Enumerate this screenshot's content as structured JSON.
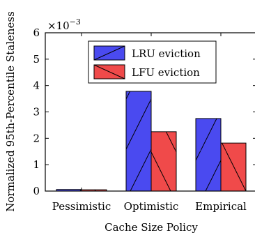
{
  "chart_data": {
    "type": "bar",
    "title": "",
    "xlabel": "Cache Size Policy",
    "ylabel": "Normalized 95th-Percentile Staleness",
    "scale_label_base": "×10",
    "scale_label_exp": "−3",
    "categories": [
      "Pessimistic",
      "Optimistic",
      "Empirical"
    ],
    "series": [
      {
        "name": "LRU eviction",
        "color": "#4a4af0",
        "values": [
          0.06,
          3.78,
          2.75
        ]
      },
      {
        "name": "LFU eviction",
        "color": "#f04a4a",
        "values": [
          0.05,
          2.25,
          1.82
        ]
      }
    ],
    "ylim": [
      0,
      6
    ],
    "yticks": [
      0,
      1,
      2,
      3,
      4,
      5,
      6
    ],
    "yticklabels": [
      "0",
      "1",
      "2",
      "3",
      "4",
      "5",
      "6"
    ],
    "legend_position": "top-center",
    "grid": false
  }
}
